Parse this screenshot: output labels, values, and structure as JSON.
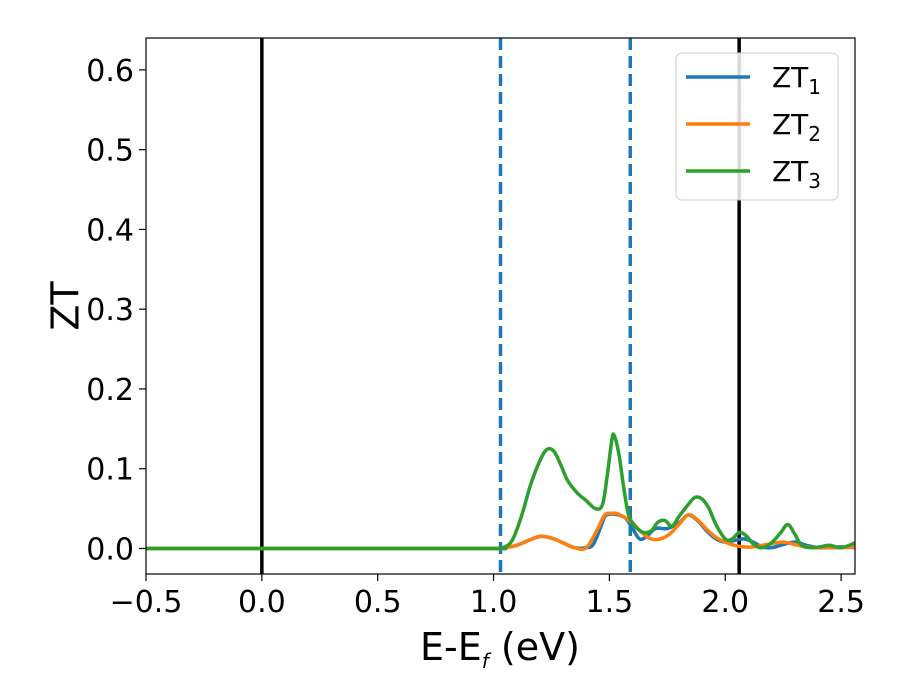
{
  "chart_data": {
    "type": "line",
    "xlabel": "E-E",
    "xlabel_sub": "f",
    "xlabel_suffix": " (eV)",
    "ylabel": "ZT",
    "xlim": [
      -0.5,
      2.56
    ],
    "ylim": [
      -0.032,
      0.64
    ],
    "xticks": [
      -0.5,
      0.0,
      0.5,
      1.0,
      1.5,
      2.0,
      2.5
    ],
    "xtick_labels": [
      "−0.5",
      "0.0",
      "0.5",
      "1.0",
      "1.5",
      "2.0",
      "2.5"
    ],
    "yticks": [
      0.0,
      0.1,
      0.2,
      0.3,
      0.4,
      0.5,
      0.6
    ],
    "ytick_labels": [
      "0.0",
      "0.1",
      "0.2",
      "0.3",
      "0.4",
      "0.5",
      "0.6"
    ],
    "grid": false,
    "legend_position": "top-right",
    "vlines": [
      {
        "x": 0.0,
        "style": "solid",
        "color": "#000000"
      },
      {
        "x": 2.06,
        "style": "solid",
        "color": "#000000"
      },
      {
        "x": 1.03,
        "style": "dashed",
        "color": "#1f77b4"
      },
      {
        "x": 1.59,
        "style": "dashed",
        "color": "#1f77b4"
      }
    ],
    "series": [
      {
        "name": "ZT",
        "name_sub": "1",
        "color": "#1f77b4",
        "x": [
          -0.5,
          0.0,
          0.5,
          1.0,
          1.05,
          1.1,
          1.15,
          1.2,
          1.25,
          1.3,
          1.35,
          1.4,
          1.43,
          1.46,
          1.48,
          1.5,
          1.52,
          1.54,
          1.57,
          1.6,
          1.63,
          1.66,
          1.7,
          1.75,
          1.8,
          1.84,
          1.88,
          1.92,
          1.96,
          2.0,
          2.04,
          2.08,
          2.12,
          2.16,
          2.2,
          2.25,
          2.3,
          2.35,
          2.4,
          2.45,
          2.5,
          2.56
        ],
        "y": [
          0.0,
          0.0,
          0.0,
          0.0,
          0.001,
          0.004,
          0.01,
          0.015,
          0.013,
          0.007,
          0.001,
          0.001,
          0.005,
          0.025,
          0.04,
          0.043,
          0.043,
          0.042,
          0.038,
          0.025,
          0.012,
          0.015,
          0.025,
          0.025,
          0.032,
          0.042,
          0.035,
          0.022,
          0.012,
          0.008,
          0.01,
          0.012,
          0.008,
          0.002,
          0.001,
          0.005,
          0.008,
          0.004,
          0.001,
          0.001,
          0.002,
          0.001
        ]
      },
      {
        "name": "ZT",
        "name_sub": "2",
        "color": "#ff7f0e",
        "x": [
          -0.5,
          0.0,
          0.5,
          1.0,
          1.05,
          1.1,
          1.15,
          1.2,
          1.25,
          1.3,
          1.35,
          1.4,
          1.45,
          1.48,
          1.51,
          1.53,
          1.56,
          1.6,
          1.64,
          1.68,
          1.72,
          1.76,
          1.8,
          1.84,
          1.88,
          1.92,
          1.96,
          2.0,
          2.04,
          2.08,
          2.12,
          2.16,
          2.2,
          2.25,
          2.3,
          2.35,
          2.4,
          2.45,
          2.5,
          2.56
        ],
        "y": [
          0.0,
          0.0,
          0.0,
          0.0,
          0.001,
          0.004,
          0.01,
          0.015,
          0.013,
          0.007,
          0.001,
          0.001,
          0.025,
          0.042,
          0.044,
          0.044,
          0.04,
          0.032,
          0.02,
          0.012,
          0.012,
          0.018,
          0.03,
          0.042,
          0.036,
          0.024,
          0.014,
          0.008,
          0.004,
          0.002,
          0.002,
          0.004,
          0.006,
          0.008,
          0.005,
          0.002,
          0.001,
          0.001,
          0.001,
          0.002
        ]
      },
      {
        "name": "ZT",
        "name_sub": "3",
        "color": "#2ca02c",
        "x": [
          -0.5,
          0.0,
          0.5,
          1.0,
          1.04,
          1.08,
          1.12,
          1.16,
          1.2,
          1.23,
          1.26,
          1.29,
          1.32,
          1.36,
          1.4,
          1.44,
          1.47,
          1.49,
          1.51,
          1.52,
          1.54,
          1.56,
          1.58,
          1.6,
          1.62,
          1.65,
          1.68,
          1.71,
          1.74,
          1.77,
          1.8,
          1.84,
          1.87,
          1.9,
          1.93,
          1.96,
          2.0,
          2.03,
          2.06,
          2.09,
          2.12,
          2.15,
          2.18,
          2.21,
          2.24,
          2.27,
          2.3,
          2.33,
          2.37,
          2.41,
          2.45,
          2.5,
          2.56
        ],
        "y": [
          0.0,
          0.0,
          0.0,
          0.0,
          0.001,
          0.01,
          0.04,
          0.08,
          0.11,
          0.124,
          0.122,
          0.105,
          0.085,
          0.07,
          0.06,
          0.05,
          0.055,
          0.09,
          0.135,
          0.142,
          0.12,
          0.08,
          0.045,
          0.032,
          0.025,
          0.02,
          0.022,
          0.033,
          0.035,
          0.028,
          0.04,
          0.055,
          0.064,
          0.062,
          0.05,
          0.03,
          0.012,
          0.012,
          0.02,
          0.016,
          0.006,
          0.001,
          0.003,
          0.01,
          0.02,
          0.03,
          0.018,
          0.004,
          0.001,
          0.002,
          0.004,
          0.001,
          0.007
        ]
      }
    ]
  }
}
